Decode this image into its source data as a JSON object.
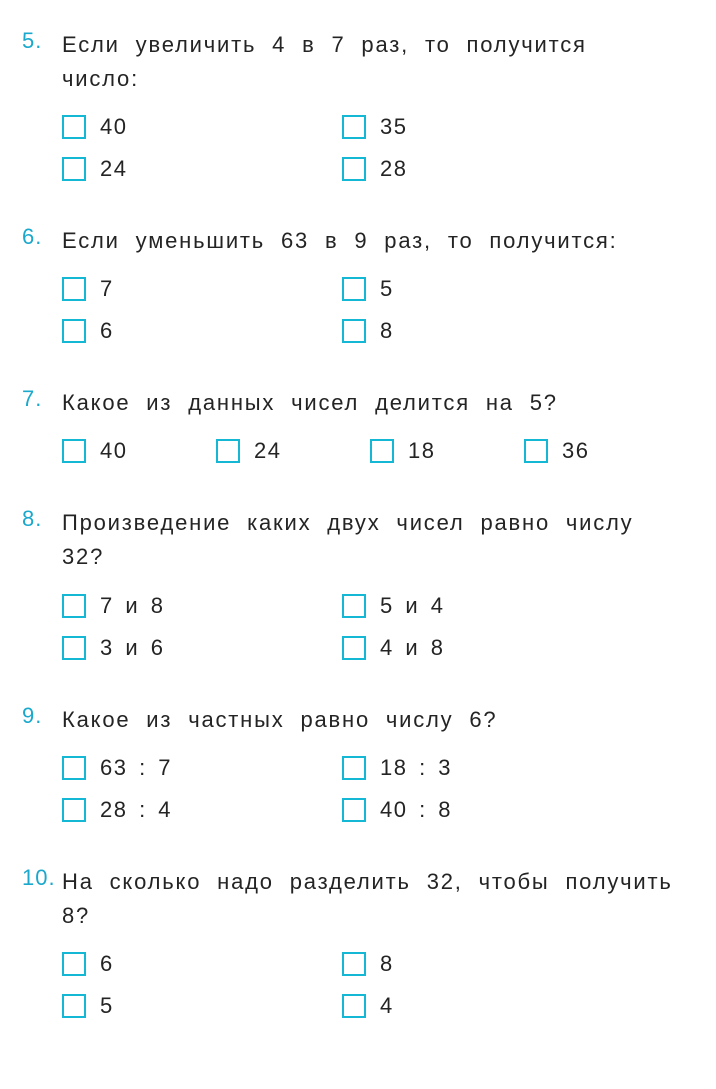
{
  "colors": {
    "number_color": "#1aa8cc",
    "checkbox_border": "#14b8d4",
    "text_color": "#242424"
  },
  "questions": [
    {
      "num": "5.",
      "text": "Если увеличить 4 в 7 раз, то получится число:",
      "layout": "grid2",
      "options": [
        "40",
        "35",
        "24",
        "28"
      ]
    },
    {
      "num": "6.",
      "text": "Если уменьшить 63 в 9 раз, то получится:",
      "layout": "grid2",
      "options": [
        "7",
        "5",
        "6",
        "8"
      ]
    },
    {
      "num": "7.",
      "text": "Какое из данных чисел делится на 5?",
      "layout": "grid4",
      "options": [
        "40",
        "24",
        "18",
        "36"
      ]
    },
    {
      "num": "8.",
      "text": "Произведение каких двух чисел равно числу 32?",
      "layout": "grid2",
      "options": [
        "7 и 8",
        "5 и 4",
        "3 и 6",
        "4 и 8"
      ]
    },
    {
      "num": "9.",
      "text": "Какое из частных равно числу 6?",
      "layout": "grid2",
      "options": [
        "63 : 7",
        "18 : 3",
        "28 : 4",
        "40 : 8"
      ]
    },
    {
      "num": "10.",
      "text": "На сколько надо разделить 32, чтобы получить 8?",
      "layout": "grid2",
      "options": [
        "6",
        "8",
        "5",
        "4"
      ]
    }
  ]
}
